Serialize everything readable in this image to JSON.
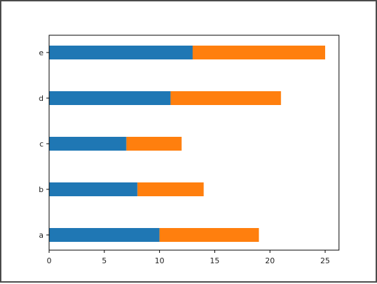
{
  "chart_data": {
    "type": "bar",
    "orientation": "horizontal",
    "stacked": true,
    "categories": [
      "a",
      "b",
      "c",
      "d",
      "e"
    ],
    "series": [
      {
        "values": [
          10,
          8,
          7,
          11,
          13
        ],
        "color": "#1f77b4"
      },
      {
        "values": [
          9,
          6,
          5,
          10,
          12
        ],
        "color": "#ff7f0e"
      }
    ],
    "xlim": [
      0,
      26.25
    ],
    "xticks": [
      0,
      5,
      10,
      15,
      20,
      25
    ],
    "title": "",
    "xlabel": "",
    "ylabel": "",
    "grid": false,
    "legend": "none"
  }
}
